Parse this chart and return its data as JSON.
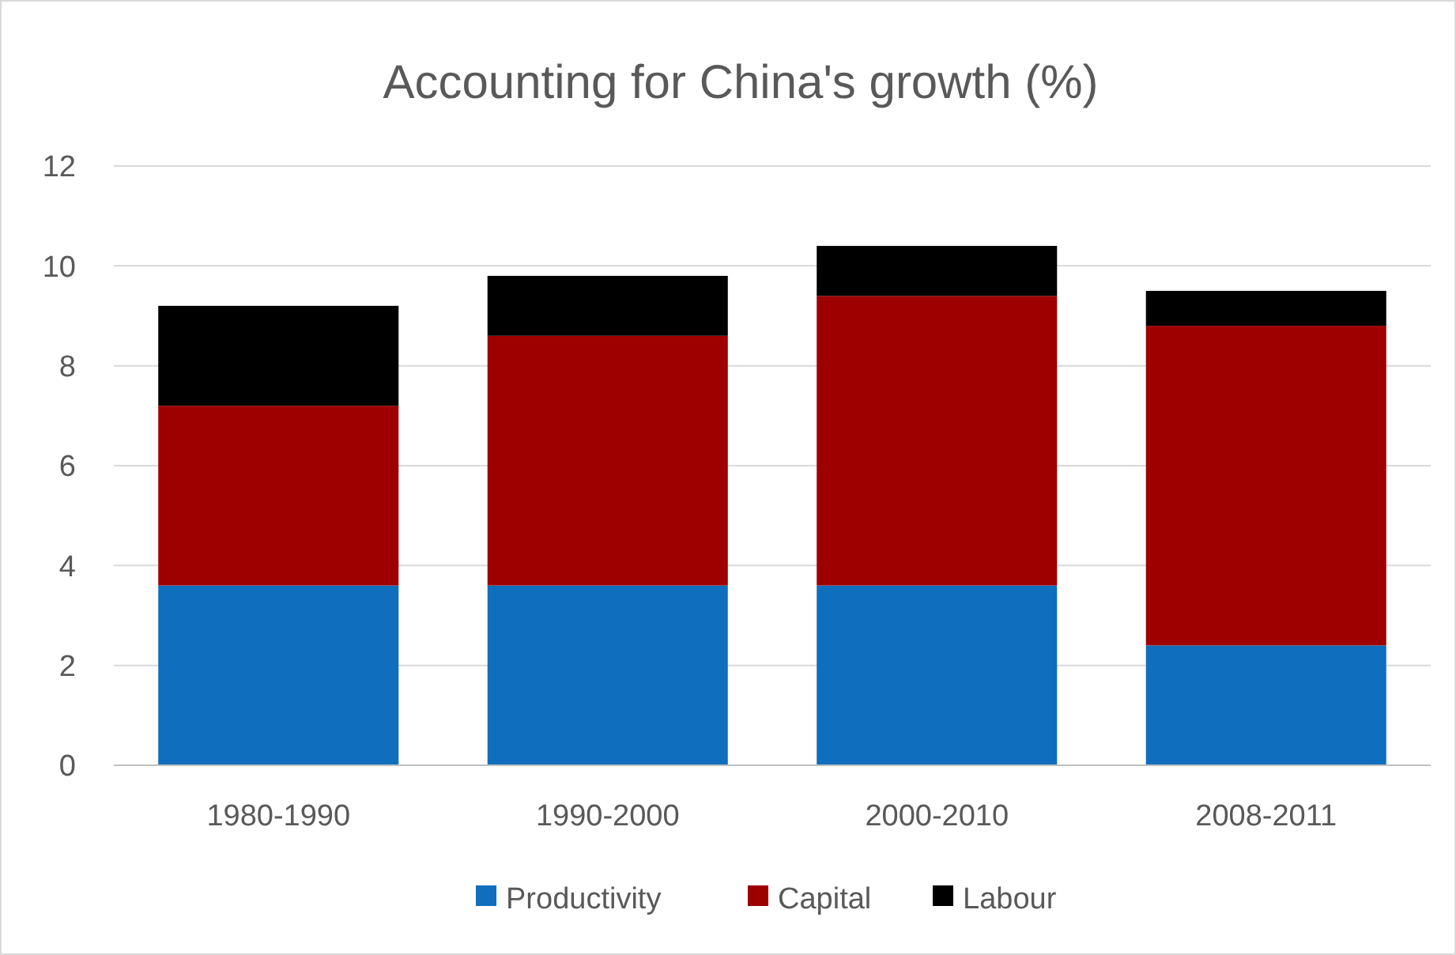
{
  "chart_data": {
    "type": "bar",
    "title": "Accounting for China's growth (%)",
    "categories": [
      "1980-1990",
      "1990-2000",
      "2000-2010",
      "2008-2011"
    ],
    "stacked": true,
    "series": [
      {
        "name": "Productivity",
        "color": "#106ebe",
        "values": [
          3.6,
          3.6,
          3.6,
          2.4
        ]
      },
      {
        "name": "Capital",
        "color": "#9e0000",
        "values": [
          3.6,
          5.0,
          5.8,
          6.4
        ]
      },
      {
        "name": "Labour",
        "color": "#000000",
        "values": [
          2.0,
          1.2,
          1.0,
          0.7
        ]
      }
    ],
    "ylim": [
      0,
      12
    ],
    "yticks": [
      0,
      2,
      4,
      6,
      8,
      10,
      12
    ],
    "grid": "y",
    "legend": "bottom"
  }
}
